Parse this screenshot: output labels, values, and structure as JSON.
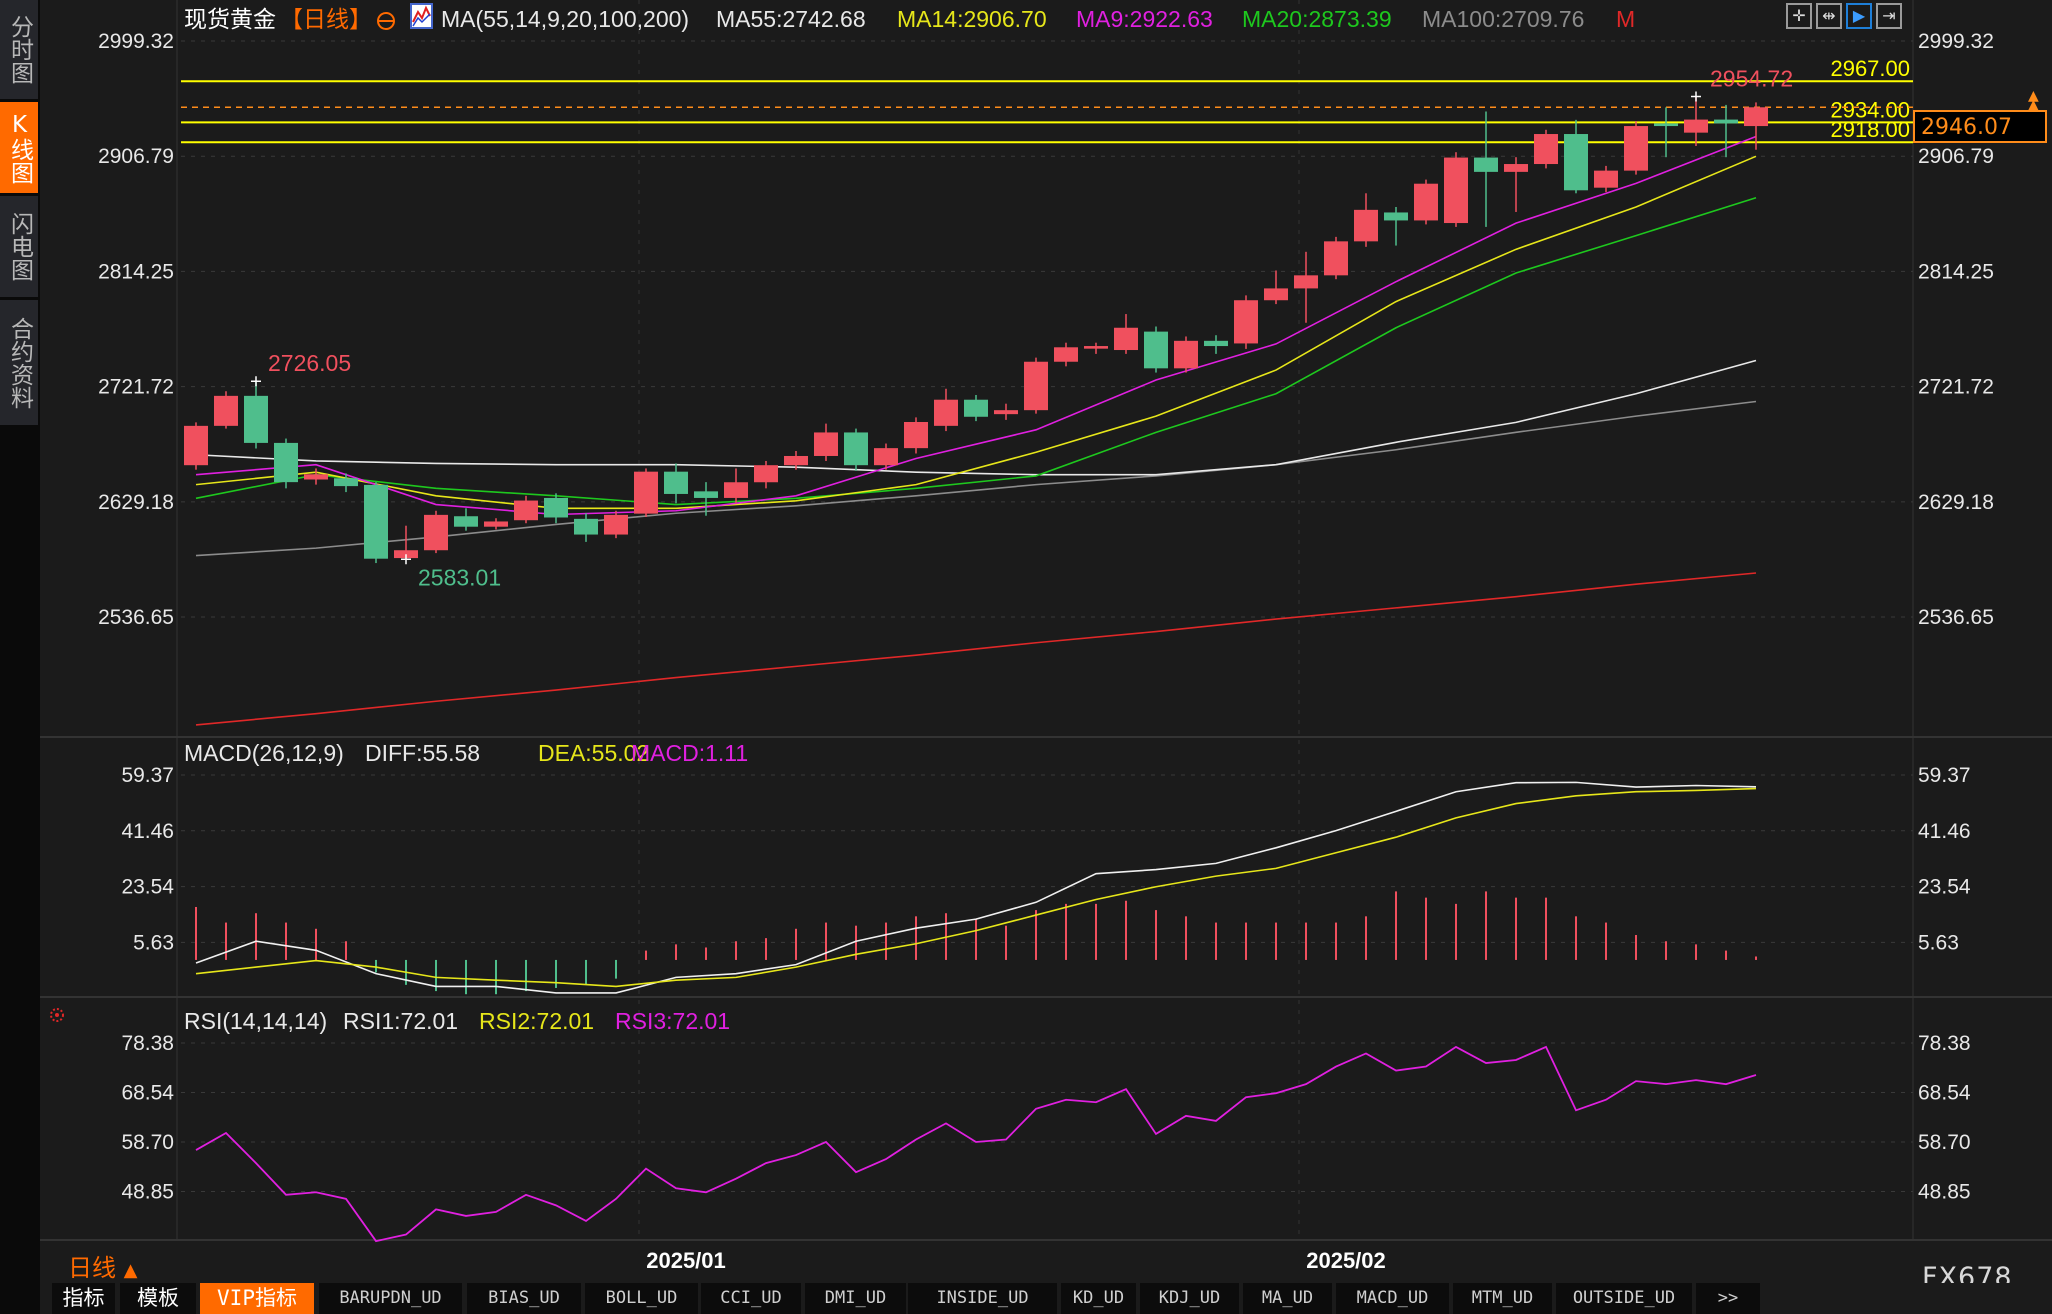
{
  "sidebar": {
    "items": [
      {
        "label": "分时图",
        "active": false
      },
      {
        "label": "K线图",
        "active": true
      },
      {
        "label": "闪电图",
        "active": false
      },
      {
        "label": "合约资料",
        "active": false
      }
    ]
  },
  "header": {
    "symbol": "现货黄金",
    "period_tag": "【日线】",
    "period_icon": "circle-plus-icon",
    "ma_params": "MA(55,14,9,20,100,200)",
    "ma55": "MA55:2742.68",
    "ma14": "MA14:2906.70",
    "ma9": "MA9:2922.63",
    "ma20": "MA20:2873.39",
    "ma100": "MA100:2709.76",
    "m_flag": "M"
  },
  "toolbar_icons": [
    "crosshair-icon",
    "fit-range-icon",
    "cursor-mode-icon",
    "scroll-right-icon"
  ],
  "colors": {
    "up": "#f0505e",
    "down": "#4fbe8c",
    "ma55": "#e8e8e8",
    "ma14": "#e6e61a",
    "ma9": "#e020e0",
    "ma20": "#1ec81e",
    "ma100": "#8c8c8c",
    "ma200": "#e02828",
    "level_line": "#ffff00",
    "current_price": "#ff8c1a",
    "accent": "#ff6a00"
  },
  "chart_data": [
    {
      "type": "candlestick",
      "title": "现货黄金 【日线】",
      "yticks": [
        "2999.32",
        "2906.79",
        "2814.25",
        "2721.72",
        "2629.18",
        "2536.65"
      ],
      "ylim": [
        2430,
        3010
      ],
      "xticks": [
        "2025/01",
        "2025/02"
      ],
      "xtick_index": [
        15,
        37
      ],
      "ohlc": [
        [
          2658.6,
          2693,
          2655,
          2690.2
        ],
        [
          2690.2,
          2718,
          2688,
          2714.3
        ],
        [
          2714.3,
          2726.05,
          2672,
          2676.5
        ],
        [
          2676.5,
          2680,
          2640,
          2645
        ],
        [
          2647.1,
          2656,
          2643,
          2651.3
        ],
        [
          2648.1,
          2652,
          2637,
          2641.8
        ],
        [
          2642.8,
          2645,
          2580,
          2583.5
        ],
        [
          2584,
          2610,
          2583.01,
          2590.3
        ],
        [
          2590.3,
          2622,
          2588,
          2618.7
        ],
        [
          2617.6,
          2624,
          2606,
          2609.2
        ],
        [
          2609.2,
          2616,
          2607,
          2613.4
        ],
        [
          2614.4,
          2634,
          2612,
          2630.2
        ],
        [
          2632.3,
          2636,
          2612,
          2616.6
        ],
        [
          2615.5,
          2620,
          2597,
          2602.9
        ],
        [
          2602.9,
          2622,
          2600,
          2618.7
        ],
        [
          2619.7,
          2656,
          2617,
          2653.4
        ],
        [
          2653.4,
          2660,
          2628,
          2635.5
        ],
        [
          2637.6,
          2645,
          2618,
          2632.3
        ],
        [
          2632.3,
          2656,
          2628,
          2644.9
        ],
        [
          2644.9,
          2662,
          2640,
          2658.6
        ],
        [
          2658.6,
          2670,
          2655,
          2666
        ],
        [
          2666,
          2692,
          2662,
          2684.9
        ],
        [
          2684.9,
          2688,
          2654,
          2658.6
        ],
        [
          2658.6,
          2676,
          2655,
          2672.3
        ],
        [
          2672.3,
          2697,
          2668,
          2693.3
        ],
        [
          2690.2,
          2720,
          2686,
          2711.2
        ],
        [
          2711.2,
          2715,
          2694,
          2697.5
        ],
        [
          2699.6,
          2708,
          2695,
          2702.8
        ],
        [
          2702.8,
          2745,
          2700,
          2741.7
        ],
        [
          2741.7,
          2757,
          2738,
          2753.3
        ],
        [
          2752.2,
          2757,
          2748,
          2754.3
        ],
        [
          2751.1,
          2780,
          2748,
          2769
        ],
        [
          2765.9,
          2770,
          2733,
          2736.4
        ],
        [
          2736.4,
          2762,
          2733,
          2758.5
        ],
        [
          2758.5,
          2763,
          2748,
          2754.3
        ],
        [
          2756.4,
          2795,
          2752,
          2791.1
        ],
        [
          2791.1,
          2815,
          2788,
          2800.6
        ],
        [
          2800.6,
          2830,
          2773,
          2811.1
        ],
        [
          2811.1,
          2842,
          2808,
          2838.4
        ],
        [
          2838.4,
          2877,
          2834,
          2863.7
        ],
        [
          2861.6,
          2866,
          2835,
          2855.2
        ],
        [
          2855.2,
          2888,
          2852,
          2884.7
        ],
        [
          2853.1,
          2910,
          2850,
          2905.7
        ],
        [
          2905.7,
          2942.7,
          2850,
          2894.2
        ],
        [
          2894.2,
          2906,
          2862,
          2900.5
        ],
        [
          2900.5,
          2928,
          2897,
          2924.6
        ],
        [
          2924.6,
          2936,
          2877,
          2879.4
        ],
        [
          2881.5,
          2899,
          2878,
          2895.2
        ],
        [
          2895.2,
          2935,
          2892,
          2931
        ],
        [
          2933.1,
          2946,
          2906,
          2931
        ],
        [
          2925.7,
          2954.72,
          2915,
          2936.2
        ],
        [
          2936.2,
          2948,
          2906,
          2933.1
        ],
        [
          2931,
          2950,
          2912,
          2946.07
        ]
      ],
      "ma_sample_index": [
        0,
        4,
        8,
        12,
        16,
        20,
        24,
        28,
        32,
        36,
        40,
        44,
        48,
        52
      ],
      "ma_series": [
        {
          "name": "MA200",
          "values": [
            2450,
            2459,
            2469,
            2478,
            2488,
            2497,
            2506,
            2516,
            2525,
            2535,
            2544,
            2553,
            2563,
            2572
          ]
        },
        {
          "name": "MA100",
          "values": [
            2586,
            2592,
            2601,
            2611,
            2620,
            2626,
            2634,
            2643,
            2650,
            2659,
            2671,
            2685,
            2698,
            2709.76
          ]
        },
        {
          "name": "MA55",
          "values": [
            2667,
            2662,
            2660,
            2659,
            2659,
            2657,
            2653,
            2651,
            2651,
            2659,
            2677,
            2693,
            2716,
            2742.68
          ]
        },
        {
          "name": "MA20",
          "values": [
            2632,
            2651,
            2640,
            2634,
            2627,
            2632,
            2640,
            2650,
            2685,
            2716,
            2769,
            2813,
            2843,
            2873.39
          ]
        },
        {
          "name": "MA14",
          "values": [
            2643,
            2653,
            2634,
            2624,
            2624,
            2630,
            2643,
            2669,
            2698,
            2735,
            2790,
            2832,
            2866,
            2906.7
          ]
        },
        {
          "name": "MA9",
          "values": [
            2651,
            2659,
            2627,
            2619,
            2622,
            2634,
            2664,
            2687,
            2727,
            2756,
            2806,
            2853,
            2885,
            2922.63
          ]
        }
      ],
      "levels": [
        {
          "label": "2967.00",
          "value": 2967.0
        },
        {
          "label": "2934.00",
          "value": 2934.0
        },
        {
          "label": "2918.00",
          "value": 2918.0
        }
      ],
      "current_price": {
        "label": "2946.07",
        "value": 2946.07
      },
      "annotations": [
        {
          "label": "2726.05",
          "index": 2,
          "value": 2726.05,
          "kind": "high"
        },
        {
          "label": "2583.01",
          "index": 7,
          "value": 2583.01,
          "kind": "low"
        },
        {
          "label": "2954.72",
          "index": 50,
          "value": 2954.72,
          "kind": "high"
        }
      ]
    },
    {
      "type": "line+bar",
      "title": "MACD(26,12,9)",
      "legend": {
        "diff": "DIFF:55.58",
        "dea": "DEA:55.02",
        "macd": "MACD:1.11"
      },
      "yticks": [
        "59.37",
        "41.46",
        "23.54",
        "5.63"
      ],
      "ylim": [
        -13,
        63
      ],
      "sample_index": [
        0,
        2,
        4,
        6,
        8,
        10,
        12,
        14,
        16,
        18,
        20,
        22,
        24,
        26,
        28,
        30,
        32,
        34,
        36,
        38,
        40,
        42,
        44,
        46,
        48,
        50,
        52
      ],
      "diff": [
        -1.0,
        6.0,
        3.1,
        -4.4,
        -8.5,
        -8.5,
        -10.6,
        -10.6,
        -5.6,
        -4.4,
        -1.5,
        6.0,
        10.2,
        13.1,
        18.5,
        27.7,
        29.0,
        31.0,
        36.0,
        41.5,
        47.7,
        54.0,
        56.9,
        57.0,
        55.5,
        56.0,
        55.58
      ],
      "dea": [
        -4.4,
        -2.3,
        -0.2,
        -2.3,
        -5.6,
        -6.5,
        -7.3,
        -8.5,
        -6.5,
        -5.6,
        -2.3,
        1.8,
        5.2,
        9.4,
        14.4,
        19.4,
        23.5,
        26.9,
        29.4,
        34.4,
        39.4,
        45.6,
        50.2,
        52.7,
        54.0,
        54.4,
        55.02
      ],
      "macd": [
        17,
        12,
        15,
        12,
        10,
        6,
        -4,
        -8,
        -10,
        -11,
        -11,
        -10,
        -9,
        -8,
        -6,
        3,
        5,
        4,
        6,
        7,
        10,
        12,
        11,
        12,
        14,
        15,
        13,
        11,
        16,
        18,
        18,
        19,
        16,
        14,
        12,
        12,
        12,
        12,
        12,
        14,
        22,
        20,
        18,
        22,
        20,
        20,
        14,
        12,
        8,
        6,
        5,
        3,
        1.11
      ]
    },
    {
      "type": "line",
      "title": "RSI(14,14,14)",
      "legend": {
        "rsi1": "RSI1:72.01",
        "rsi2": "RSI2:72.01",
        "rsi3": "RSI3:72.01"
      },
      "yticks": [
        "78.38",
        "68.54",
        "58.70",
        "48.85"
      ],
      "ylim": [
        36,
        81
      ],
      "values": [
        57.1,
        60.5,
        54.5,
        48.2,
        48.7,
        47.4,
        39.0,
        40.3,
        45.3,
        44.0,
        44.8,
        48.2,
        46.1,
        43.0,
        47.4,
        53.4,
        49.5,
        48.7,
        51.4,
        54.5,
        56.1,
        58.7,
        52.7,
        55.3,
        59.2,
        62.4,
        58.7,
        59.2,
        65.3,
        67.1,
        66.6,
        69.2,
        60.3,
        63.9,
        62.9,
        67.6,
        68.4,
        70.2,
        73.7,
        76.3,
        72.9,
        73.7,
        77.6,
        74.4,
        75.0,
        77.6,
        65.0,
        67.1,
        70.8,
        70.2,
        71.0,
        70.2,
        72.01
      ]
    }
  ],
  "footer": {
    "period_label": "日线",
    "brand": "FX678",
    "tabs": [
      {
        "label": "指标"
      },
      {
        "label": "模板"
      },
      {
        "label": "VIP指标",
        "active": true
      },
      {
        "label": "BARUPDN_UD"
      },
      {
        "label": "BIAS_UD"
      },
      {
        "label": "BOLL_UD"
      },
      {
        "label": "CCI_UD"
      },
      {
        "label": "DMI_UD"
      },
      {
        "label": "INSIDE_UD"
      },
      {
        "label": "KD_UD"
      },
      {
        "label": "KDJ_UD"
      },
      {
        "label": "MA_UD"
      },
      {
        "label": "MACD_UD"
      },
      {
        "label": "MTM_UD"
      },
      {
        "label": "OUTSIDE_UD"
      },
      {
        "label": ">>"
      }
    ]
  }
}
